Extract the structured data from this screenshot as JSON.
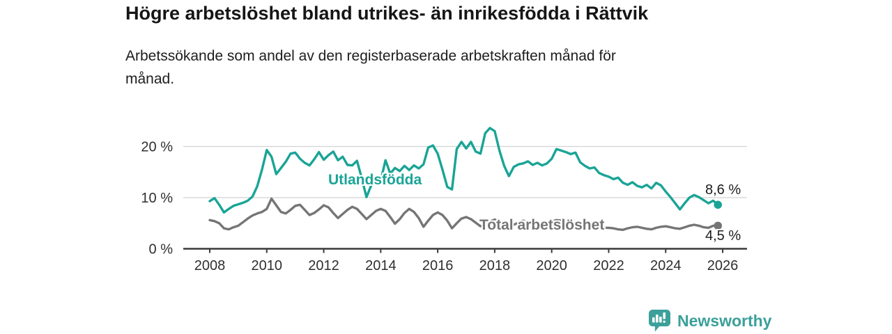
{
  "header": {
    "title": "Högre arbetslöshet bland utrikes- än inrikesfödda i Rättvik",
    "subtitle": "Arbetssökande som andel av den registerbaserade arbetskraften månad för månad."
  },
  "chart_data": {
    "type": "line",
    "title": "Högre arbetslöshet bland utrikes- än inrikesfödda i Rättvik",
    "subtitle": "Arbetssökande som andel av den registerbaserade arbetskraften månad för månad.",
    "unit": "%",
    "x_start_year": 2008,
    "points_per_year": 6,
    "x_axis_ticks": [
      2008,
      2010,
      2012,
      2014,
      2016,
      2018,
      2020,
      2022,
      2024,
      2026
    ],
    "y_axis_ticks": [
      {
        "value": 0,
        "label": "0 %"
      },
      {
        "value": 10,
        "label": "10 %"
      },
      {
        "value": 20,
        "label": "20 %"
      }
    ],
    "ylim": [
      0,
      25
    ],
    "grid": "horizontal",
    "legend": "inline-labels",
    "series": [
      {
        "name": "Utlandsfödda",
        "color": "#1aa496",
        "end_value": 8.6,
        "end_value_label": "8,6 %",
        "values": [
          9.3,
          9.9,
          8.6,
          7.1,
          7.8,
          8.4,
          8.7,
          9.0,
          9.4,
          10.2,
          12.2,
          15.5,
          19.3,
          18.0,
          14.6,
          15.8,
          17.0,
          18.6,
          18.8,
          17.6,
          16.8,
          16.3,
          17.5,
          18.9,
          17.4,
          18.3,
          19.0,
          17.3,
          18.0,
          16.4,
          16.3,
          17.2,
          13.8,
          10.1,
          12.4,
          13.5,
          13.3,
          17.3,
          14.7,
          15.8,
          15.2,
          16.2,
          15.4,
          16.3,
          15.7,
          16.5,
          19.8,
          20.2,
          18.6,
          15.5,
          12.1,
          11.6,
          19.5,
          20.9,
          19.6,
          20.9,
          19.0,
          18.6,
          22.6,
          23.6,
          23.0,
          19.2,
          16.2,
          14.2,
          16.0,
          16.5,
          16.7,
          17.1,
          16.4,
          16.8,
          16.3,
          16.7,
          17.6,
          19.5,
          19.2,
          18.9,
          18.5,
          18.8,
          16.9,
          16.2,
          15.7,
          15.9,
          14.8,
          14.4,
          14.1,
          13.6,
          13.9,
          12.9,
          12.5,
          13.0,
          12.3,
          12.0,
          12.5,
          11.8,
          12.9,
          12.4,
          11.2,
          10.1,
          8.9,
          7.7,
          8.9,
          10.0,
          10.5,
          10.1,
          9.5,
          8.9,
          9.4,
          8.6
        ]
      },
      {
        "name": "Total arbetslöshet",
        "color": "#757575",
        "end_value": 4.5,
        "end_value_label": "4,5 %",
        "values": [
          5.6,
          5.4,
          5.0,
          4.0,
          3.8,
          4.2,
          4.5,
          5.2,
          5.9,
          6.5,
          6.9,
          7.2,
          7.8,
          9.8,
          8.5,
          7.2,
          6.9,
          7.6,
          8.4,
          8.6,
          7.6,
          6.6,
          7.0,
          7.7,
          8.5,
          8.1,
          7.0,
          6.0,
          6.8,
          7.6,
          8.2,
          7.8,
          6.8,
          5.8,
          6.6,
          7.4,
          7.8,
          7.4,
          6.2,
          4.9,
          5.8,
          7.0,
          7.8,
          7.2,
          6.0,
          4.3,
          5.5,
          6.6,
          7.1,
          6.6,
          5.5,
          4.0,
          5.0,
          5.9,
          6.2,
          5.8,
          5.1,
          4.4,
          4.8,
          5.3,
          5.7,
          5.4,
          4.8,
          4.4,
          4.7,
          5.1,
          5.5,
          5.2,
          4.7,
          4.3,
          4.6,
          5.0,
          5.3,
          5.6,
          5.5,
          5.1,
          4.9,
          5.0,
          5.1,
          4.8,
          4.5,
          4.3,
          4.2,
          4.1,
          4.1,
          4.0,
          3.8,
          3.7,
          4.0,
          4.2,
          4.3,
          4.1,
          3.9,
          3.8,
          4.1,
          4.3,
          4.4,
          4.2,
          4.0,
          3.9,
          4.2,
          4.5,
          4.7,
          4.5,
          4.2,
          4.1,
          4.5,
          4.5
        ]
      }
    ]
  },
  "footer": {
    "brand": "Newsworthy",
    "brand_color": "#3ba09a",
    "logo_icon": "bar-chart-speech-bubble-icon"
  }
}
